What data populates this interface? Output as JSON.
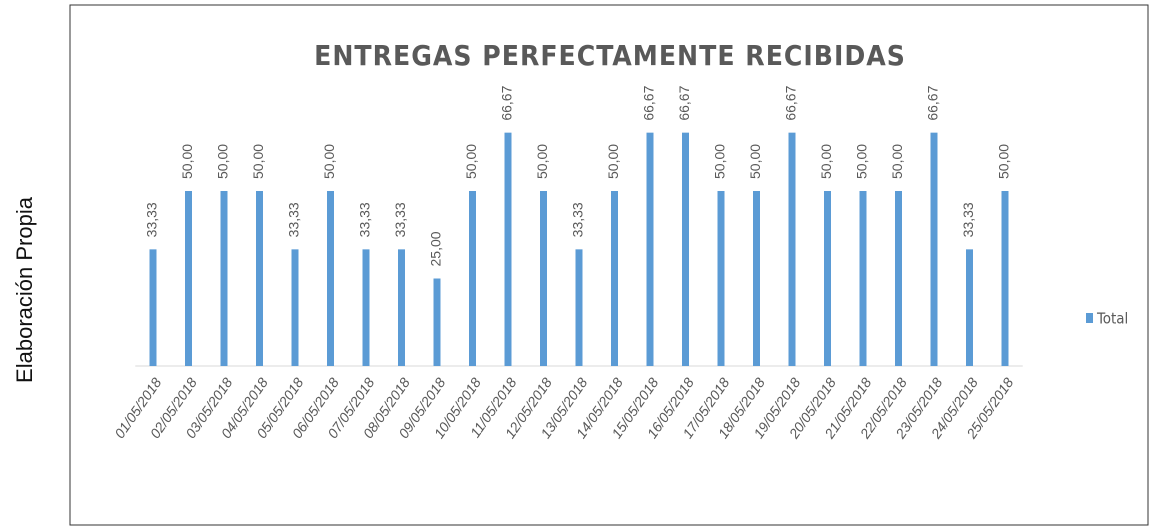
{
  "side_note": "Elaboración Propia",
  "chart_data": {
    "type": "bar",
    "title": "ENTREGAS PERFECTAMENTE RECIBIDAS",
    "categories": [
      "01/05/2018",
      "02/05/2018",
      "03/05/2018",
      "04/05/2018",
      "05/05/2018",
      "06/05/2018",
      "07/05/2018",
      "08/05/2018",
      "09/05/2018",
      "10/05/2018",
      "11/05/2018",
      "12/05/2018",
      "13/05/2018",
      "14/05/2018",
      "15/05/2018",
      "16/05/2018",
      "17/05/2018",
      "18/05/2018",
      "19/05/2018",
      "20/05/2018",
      "21/05/2018",
      "22/05/2018",
      "23/05/2018",
      "24/05/2018",
      "25/05/2018"
    ],
    "series": [
      {
        "name": "Total",
        "color": "#5b9bd5",
        "values": [
          33.33,
          50,
          50,
          50,
          33.33,
          50,
          33.33,
          33.33,
          25,
          50,
          66.67,
          50,
          33.33,
          50,
          66.67,
          66.67,
          50,
          50,
          66.67,
          50,
          50,
          50,
          66.67,
          33.33,
          50
        ],
        "value_labels": [
          "33,33",
          "50,00",
          "50,00",
          "50,00",
          "33,33",
          "50,00",
          "33,33",
          "33,33",
          "25,00",
          "50,00",
          "66,67",
          "50,00",
          "33,33",
          "50,00",
          "66,67",
          "66,67",
          "50,00",
          "50,00",
          "66,67",
          "50,00",
          "50,00",
          "50,00",
          "66,67",
          "33,33",
          "50,00"
        ]
      }
    ],
    "ylim": [
      0,
      80
    ],
    "legend": "right"
  }
}
